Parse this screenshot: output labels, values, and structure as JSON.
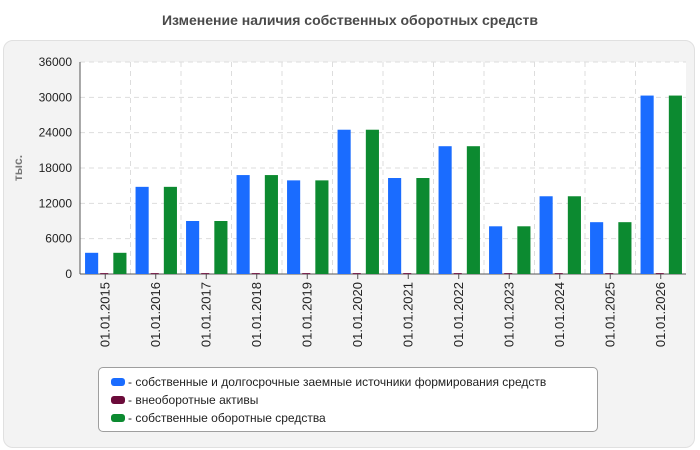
{
  "chart_data": {
    "type": "bar",
    "title": "Изменение наличия собственных оборотных средств",
    "ylabel": "тыс.",
    "xlabel": "",
    "ylim": [
      0,
      36000
    ],
    "yticks": [
      0,
      6000,
      12000,
      18000,
      24000,
      30000,
      36000
    ],
    "grid": true,
    "legend_position": "bottom",
    "categories": [
      "01.01.2015",
      "01.01.2016",
      "01.01.2017",
      "01.01.2018",
      "01.01.2019",
      "01.01.2020",
      "01.01.2021",
      "01.01.2022",
      "01.01.2023",
      "01.01.2024",
      "01.01.2025",
      "01.01.2026"
    ],
    "series": [
      {
        "name": "- собственные и долгосрочные заемные источники формирования средств",
        "color": "#1a6cff",
        "values": [
          3600,
          14800,
          9000,
          16800,
          15900,
          24500,
          16300,
          21700,
          8100,
          13200,
          8800,
          30300
        ]
      },
      {
        "name": "- внеоборотные активы",
        "color": "#6b0b3a",
        "values": [
          150,
          150,
          150,
          150,
          150,
          150,
          150,
          150,
          150,
          150,
          150,
          150
        ]
      },
      {
        "name": "- собственные оборотные средства",
        "color": "#0c8a30",
        "values": [
          3600,
          14800,
          9000,
          16800,
          15900,
          24500,
          16300,
          21700,
          8100,
          13200,
          8800,
          30300
        ]
      }
    ]
  }
}
